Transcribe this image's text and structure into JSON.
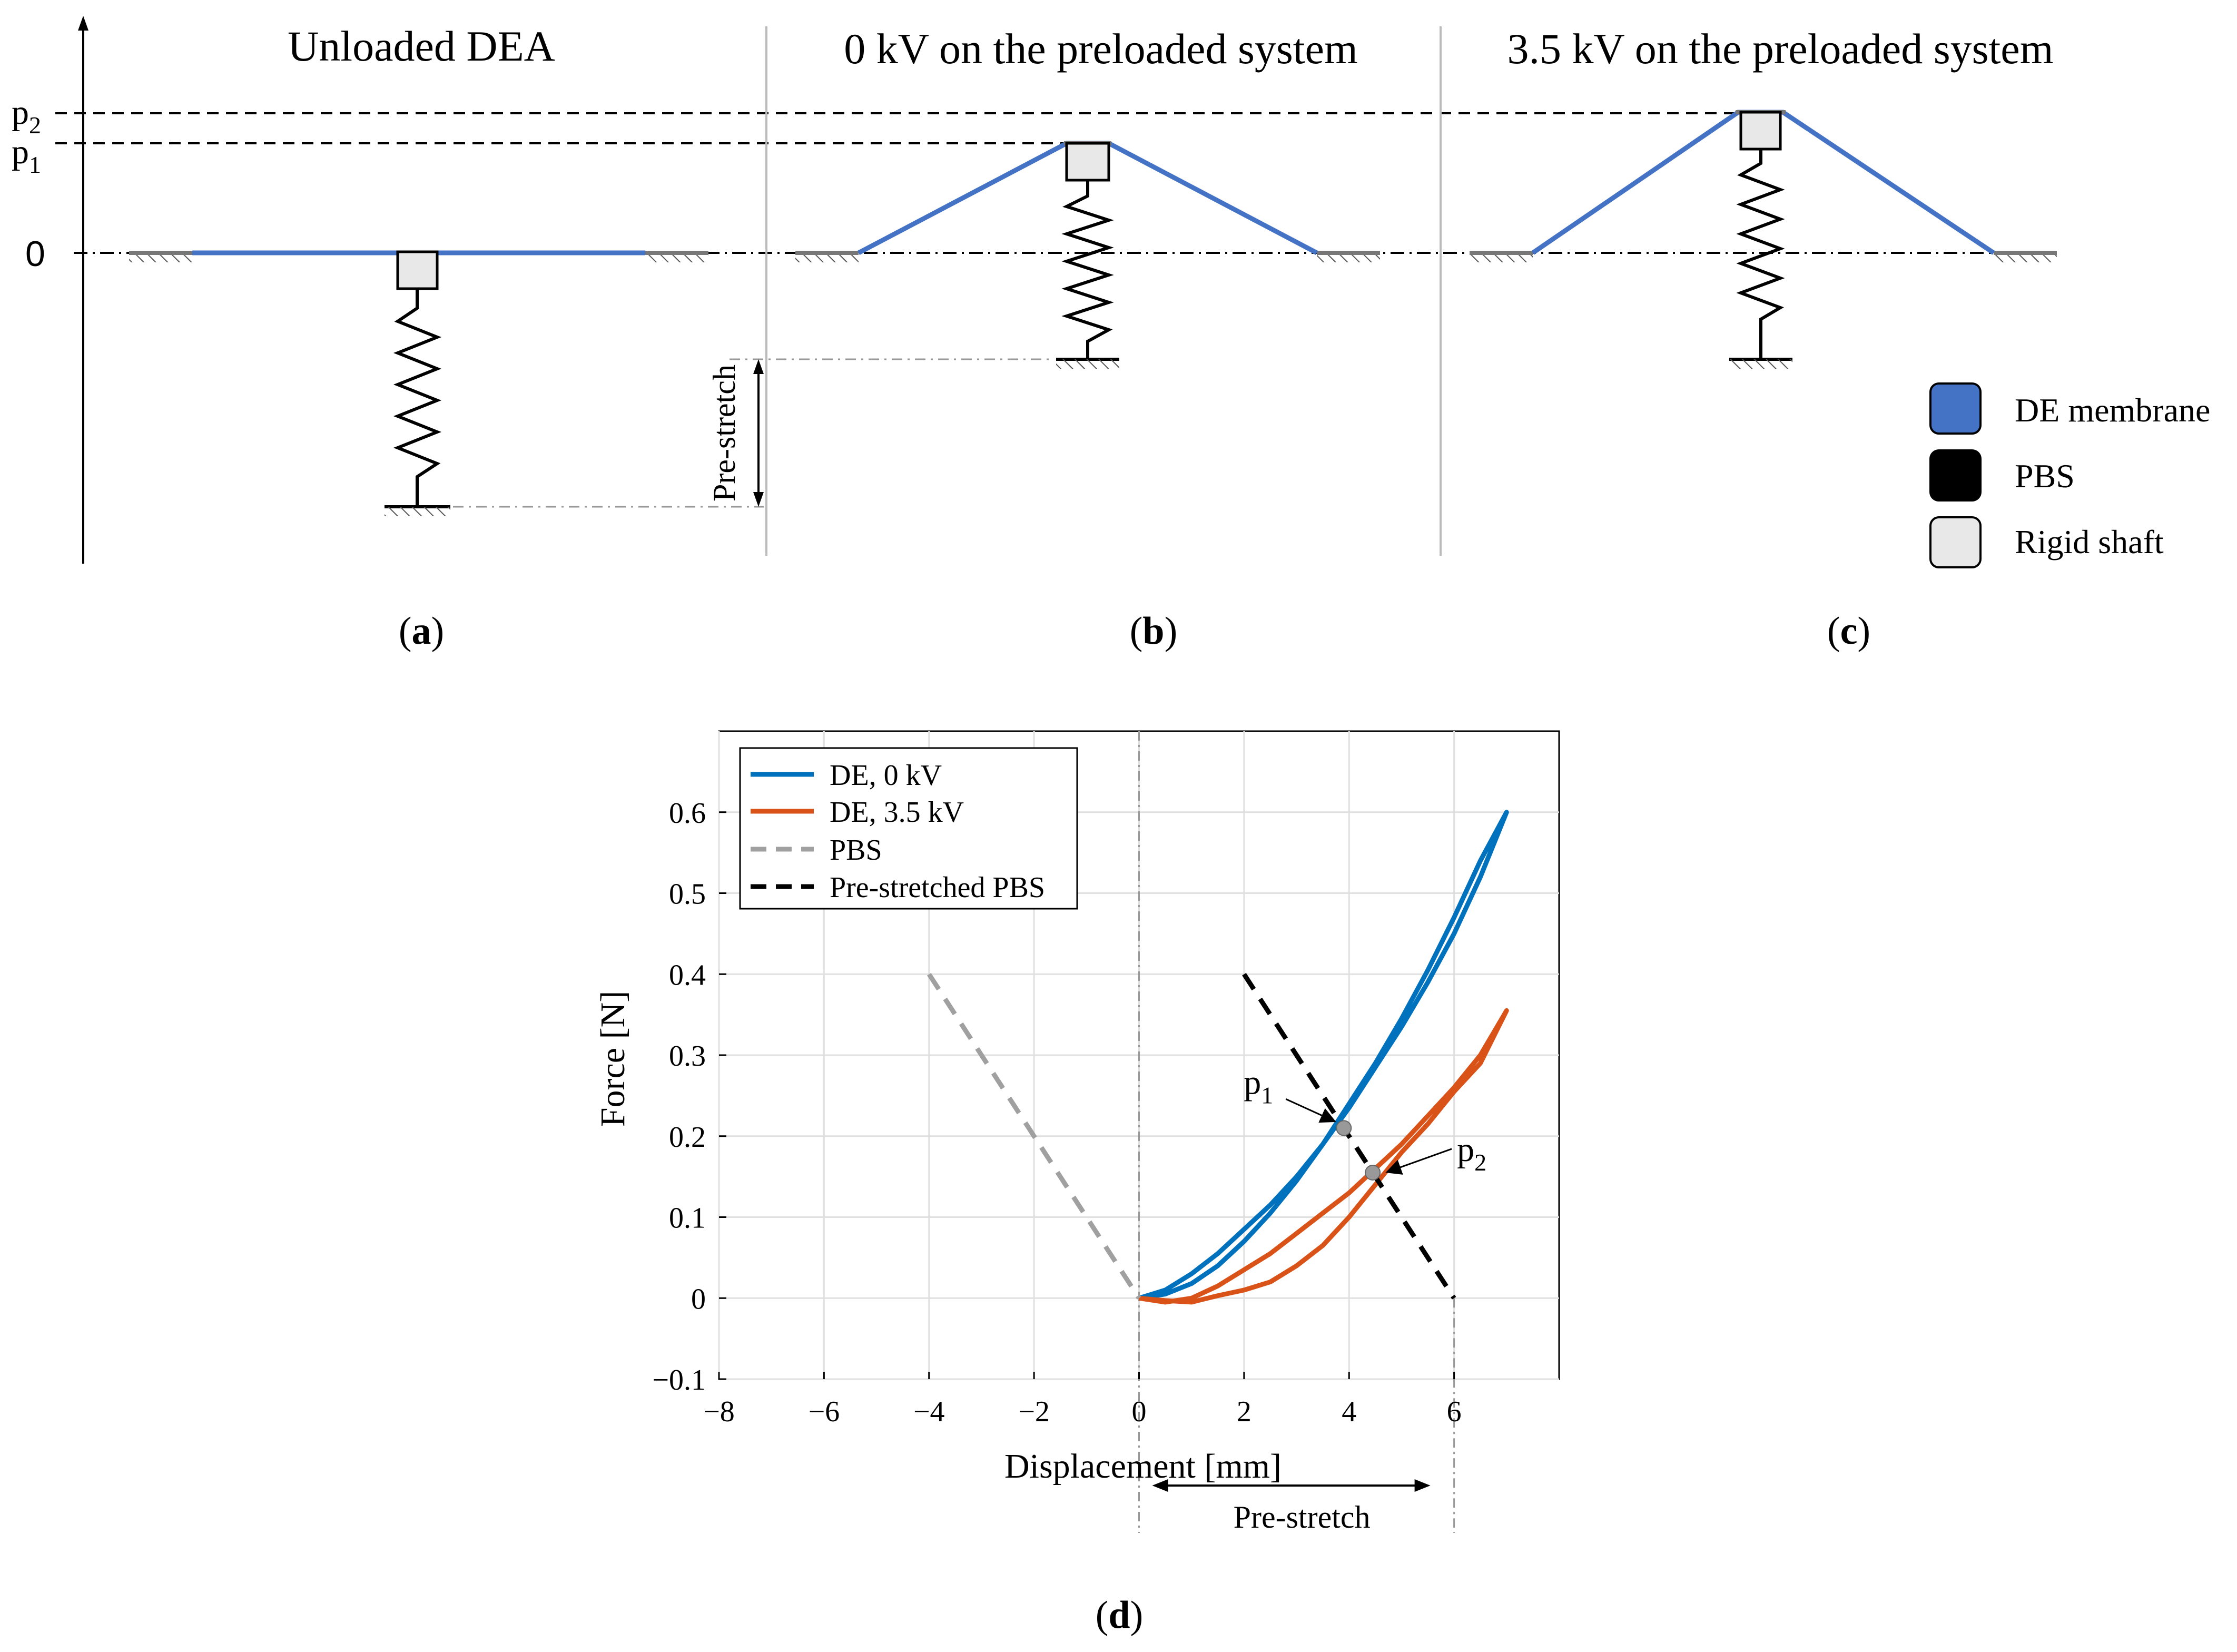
{
  "panels": {
    "a": {
      "title": "Unloaded DEA",
      "caption": "a"
    },
    "b": {
      "title": "0 kV on the preloaded system",
      "caption": "b"
    },
    "c": {
      "title": "3.5 kV on the preloaded system",
      "caption": "c"
    },
    "d": {
      "caption": "d"
    }
  },
  "levels": {
    "p2": "p",
    "p2_sub": "2",
    "p1": "p",
    "p1_sub": "1",
    "zero": "0"
  },
  "prestretch_label": "Pre-stretch",
  "legend_top": {
    "items": [
      {
        "label": "DE membrane",
        "color": "#4472C4"
      },
      {
        "label": "PBS",
        "color": "#000000"
      },
      {
        "label": "Rigid shaft",
        "color": "#E8E8E8"
      }
    ]
  },
  "chart_data": {
    "type": "line",
    "xlabel": "Displacement [mm]",
    "ylabel": "Force [N]",
    "xlim": [
      -8,
      8
    ],
    "ylim": [
      -0.1,
      0.7
    ],
    "xticks": [
      -8,
      -6,
      -4,
      -2,
      0,
      2,
      4,
      6
    ],
    "yticks": [
      -0.1,
      0,
      0.1,
      0.2,
      0.3,
      0.4,
      0.5,
      0.6
    ],
    "grid": true,
    "legend_position": "top-left",
    "series": [
      {
        "name": "DE, 0 kV",
        "color": "#0072BD",
        "style": "solid",
        "x": [
          0,
          0.5,
          1,
          1.5,
          2,
          2.5,
          3,
          3.5,
          4,
          4.5,
          5,
          5.5,
          6,
          6.5,
          7,
          7,
          6.5,
          6,
          5.5,
          5,
          4.5,
          4,
          3.5,
          3,
          2.5,
          2,
          1.5,
          1,
          0.5,
          0
        ],
        "y": [
          0,
          0.01,
          0.03,
          0.055,
          0.085,
          0.115,
          0.15,
          0.19,
          0.235,
          0.285,
          0.335,
          0.39,
          0.45,
          0.52,
          0.6,
          0.6,
          0.54,
          0.47,
          0.405,
          0.345,
          0.29,
          0.24,
          0.19,
          0.145,
          0.105,
          0.07,
          0.04,
          0.018,
          0.005,
          0
        ]
      },
      {
        "name": "DE, 3.5 kV",
        "color": "#D95319",
        "style": "solid",
        "x": [
          0,
          0.5,
          1,
          1.5,
          2,
          2.5,
          3,
          3.5,
          4,
          4.5,
          5,
          5.5,
          6,
          6.5,
          7,
          7,
          6.5,
          6,
          5.5,
          5,
          4.5,
          4,
          3.5,
          3,
          2.5,
          2,
          1.5,
          1,
          0.5,
          0
        ],
        "y": [
          0,
          -0.005,
          0,
          0.015,
          0.035,
          0.055,
          0.08,
          0.105,
          0.13,
          0.16,
          0.19,
          0.225,
          0.26,
          0.3,
          0.355,
          0.355,
          0.29,
          0.255,
          0.215,
          0.18,
          0.14,
          0.1,
          0.065,
          0.04,
          0.02,
          0.01,
          0.003,
          -0.005,
          -0.003,
          0
        ]
      },
      {
        "name": "PBS",
        "color": "#A0A0A0",
        "style": "dashed",
        "x": [
          -4,
          0
        ],
        "y": [
          0.4,
          0
        ]
      },
      {
        "name": "Pre-stretched PBS",
        "color": "#000000",
        "style": "dashed",
        "x": [
          2,
          6
        ],
        "y": [
          0.4,
          0
        ]
      }
    ],
    "markers": [
      {
        "label": "p",
        "sub": "1",
        "x": 3.9,
        "y": 0.21
      },
      {
        "label": "p",
        "sub": "2",
        "x": 4.45,
        "y": 0.155
      }
    ],
    "annotation": {
      "label": "Pre-stretch",
      "x_from": 0,
      "x_to": 6
    }
  }
}
